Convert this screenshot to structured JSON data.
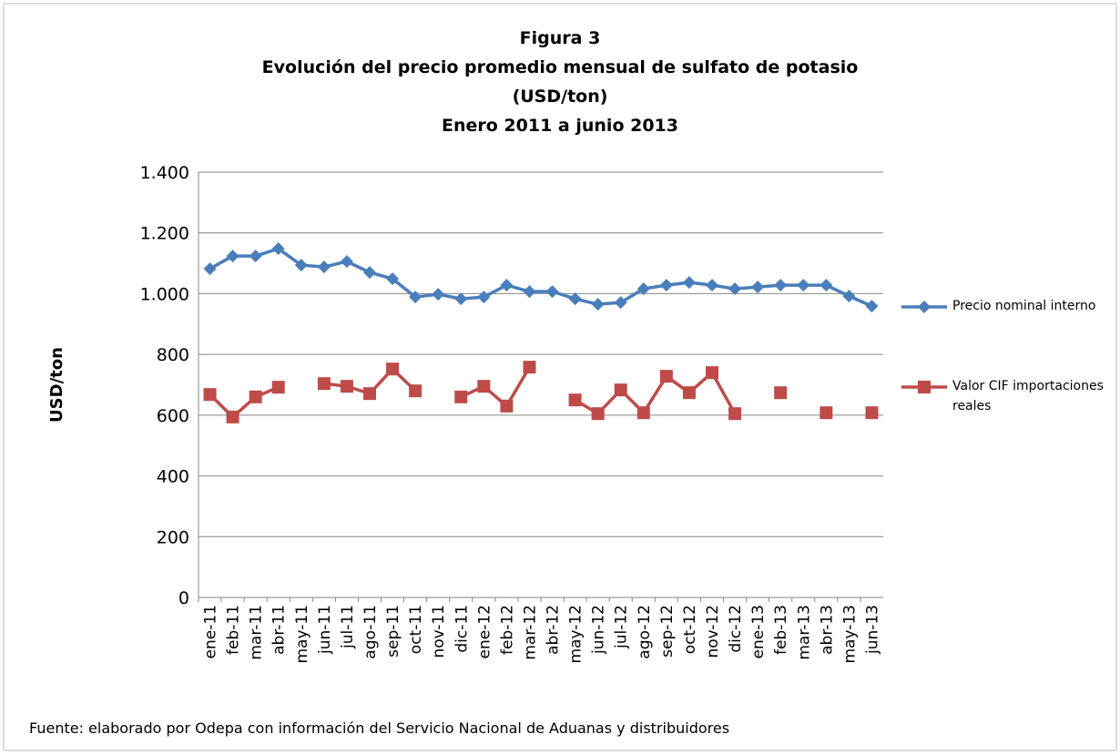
{
  "chart_data": {
    "type": "line",
    "title_lines": [
      "Figura 3",
      "Evolución del precio promedio mensual de sulfato de potasio",
      "(USD/ton)",
      "Enero 2011 a junio 2013"
    ],
    "y_label": "USD/ton",
    "source": "Fuente: elaborado por Odepa con información del Servicio Nacional de Aduanas y distribuidores",
    "categories": [
      "ene-11",
      "feb-11",
      "mar-11",
      "abr-11",
      "may-11",
      "jun-11",
      "jul-11",
      "ago-11",
      "sep-11",
      "oct-11",
      "nov-11",
      "dic-11",
      "ene-12",
      "feb-12",
      "mar-12",
      "abr-12",
      "may-12",
      "jun-12",
      "jul-12",
      "ago-12",
      "sep-12",
      "oct-12",
      "nov-12",
      "dic-12",
      "ene-13",
      "feb-13",
      "mar-13",
      "abr-13",
      "may-13",
      "jun-13"
    ],
    "series": [
      {
        "name": "Precio nominal interno",
        "color": "#4a7ebb",
        "marker": "diamond",
        "values": [
          1082,
          1124,
          1124,
          1148,
          1094,
          1088,
          1106,
          1070,
          1049,
          989,
          998,
          983,
          989,
          1028,
          1007,
          1007,
          983,
          965,
          971,
          1016,
          1028,
          1037,
          1028,
          1016,
          1022,
          1028,
          1028,
          1028,
          992,
          959
        ]
      },
      {
        "name": "Valor CIF importaciones reales",
        "color": "#be4b48",
        "marker": "square",
        "values": [
          668,
          594,
          660,
          692,
          null,
          704,
          695,
          671,
          752,
          680,
          null,
          660,
          695,
          630,
          758,
          null,
          650,
          605,
          683,
          608,
          728,
          674,
          740,
          605,
          null,
          674,
          null,
          608,
          null,
          608
        ]
      }
    ],
    "ylim": [
      0,
      1400
    ],
    "yticks": [
      0,
      200,
      400,
      600,
      800,
      {
        "value": 1000,
        "label": "1.000"
      },
      {
        "value": 1200,
        "label": "1.200"
      },
      {
        "value": 1400,
        "label": "1.400"
      }
    ],
    "grid": true,
    "legend": "right"
  }
}
